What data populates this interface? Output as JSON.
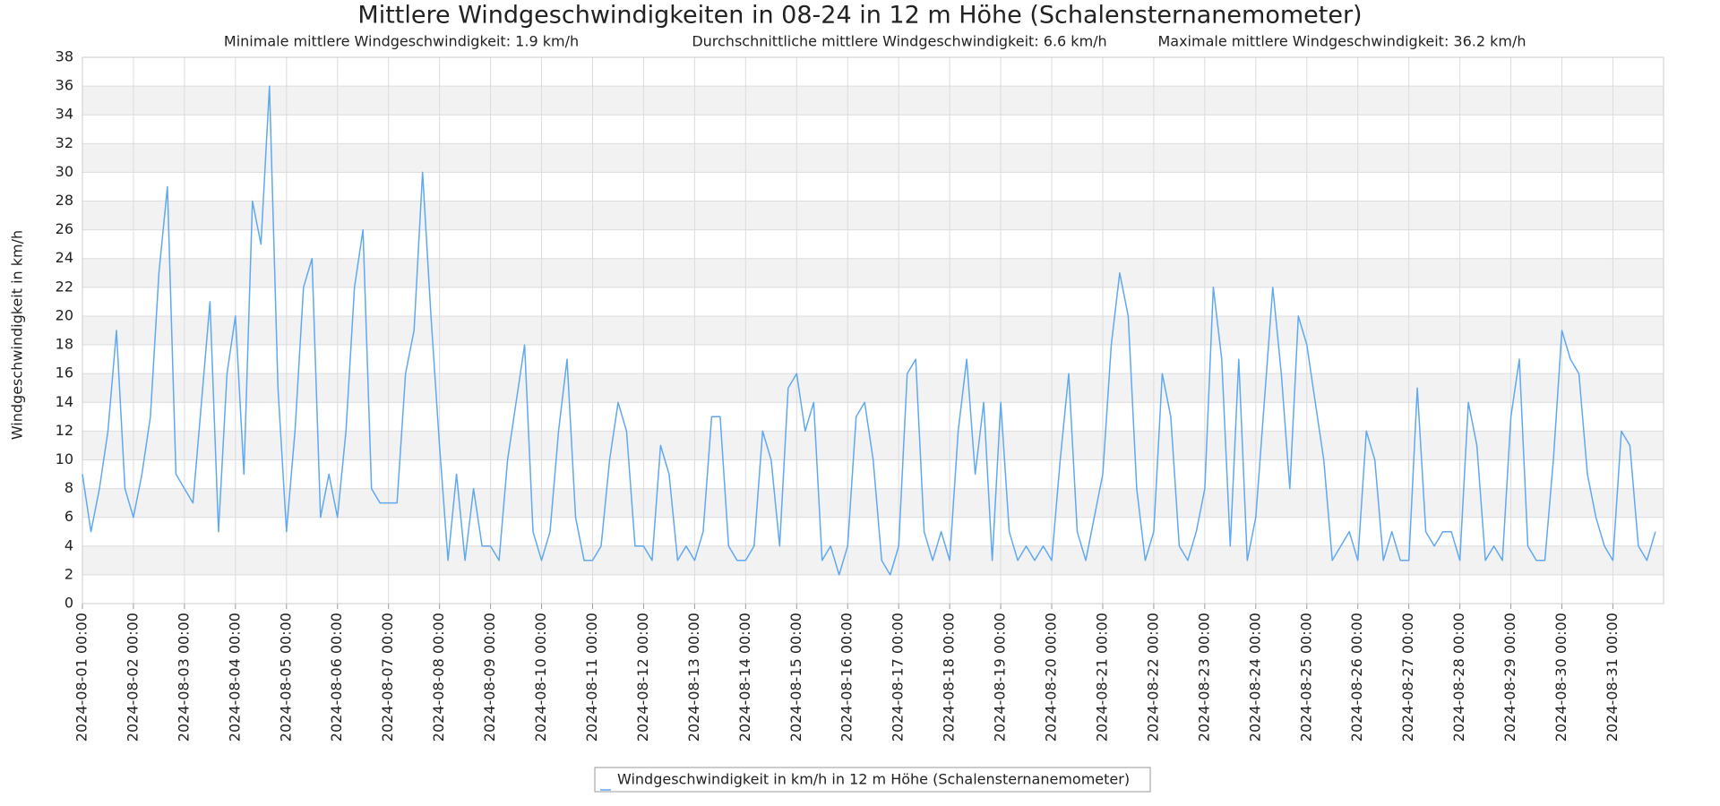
{
  "chart_data": {
    "type": "line",
    "title": "Mittlere Windgeschwindigkeiten in 08-24 in 12 m Höhe (Schalensternanemometer)",
    "subtitle": [
      "Minimale mittlere Windgeschwindigkeit: 1.9 km/h",
      "Durchschnittliche mittlere Windgeschwindigkeit: 6.6 km/h",
      "Maximale mittlere Windgeschwindigkeit: 36.2 km/h"
    ],
    "y_label": "Windgeschwindigkeit in km/h",
    "ylim": [
      0,
      38
    ],
    "yticks": [
      0,
      2,
      4,
      6,
      8,
      10,
      12,
      14,
      16,
      18,
      20,
      22,
      24,
      26,
      28,
      30,
      32,
      34,
      36,
      38
    ],
    "xlim": [
      "2024-08-01 00:00",
      "2024-08-31 23:50"
    ],
    "xticks": [
      "2024-08-01 00:00",
      "2024-08-02 00:00",
      "2024-08-03 00:00",
      "2024-08-04 00:00",
      "2024-08-05 00:00",
      "2024-08-06 00:00",
      "2024-08-07 00:00",
      "2024-08-08 00:00",
      "2024-08-09 00:00",
      "2024-08-10 00:00",
      "2024-08-11 00:00",
      "2024-08-12 00:00",
      "2024-08-13 00:00",
      "2024-08-14 00:00",
      "2024-08-15 00:00",
      "2024-08-16 00:00",
      "2024-08-17 00:00",
      "2024-08-18 00:00",
      "2024-08-19 00:00",
      "2024-08-20 00:00",
      "2024-08-21 00:00",
      "2024-08-22 00:00",
      "2024-08-23 00:00",
      "2024-08-24 00:00",
      "2024-08-25 00:00",
      "2024-08-26 00:00",
      "2024-08-27 00:00",
      "2024-08-28 00:00",
      "2024-08-29 00:00",
      "2024-08-30 00:00",
      "2024-08-31 00:00"
    ],
    "grid": true,
    "x": [
      "2024-08-01 00:00",
      "2024-08-01 04:00",
      "2024-08-01 08:00",
      "2024-08-01 12:00",
      "2024-08-01 16:00",
      "2024-08-01 20:00",
      "2024-08-02 00:00",
      "2024-08-02 04:00",
      "2024-08-02 08:00",
      "2024-08-02 12:00",
      "2024-08-02 16:00",
      "2024-08-02 20:00",
      "2024-08-03 00:00",
      "2024-08-03 04:00",
      "2024-08-03 08:00",
      "2024-08-03 12:00",
      "2024-08-03 16:00",
      "2024-08-03 20:00",
      "2024-08-04 00:00",
      "2024-08-04 04:00",
      "2024-08-04 08:00",
      "2024-08-04 12:00",
      "2024-08-04 16:00",
      "2024-08-04 20:00",
      "2024-08-05 00:00",
      "2024-08-05 04:00",
      "2024-08-05 08:00",
      "2024-08-05 12:00",
      "2024-08-05 16:00",
      "2024-08-05 20:00",
      "2024-08-06 00:00",
      "2024-08-06 04:00",
      "2024-08-06 08:00",
      "2024-08-06 12:00",
      "2024-08-06 16:00",
      "2024-08-06 20:00",
      "2024-08-07 00:00",
      "2024-08-07 04:00",
      "2024-08-07 08:00",
      "2024-08-07 12:00",
      "2024-08-07 16:00",
      "2024-08-07 20:00",
      "2024-08-08 00:00",
      "2024-08-08 04:00",
      "2024-08-08 08:00",
      "2024-08-08 12:00",
      "2024-08-08 16:00",
      "2024-08-08 20:00",
      "2024-08-09 00:00",
      "2024-08-09 04:00",
      "2024-08-09 08:00",
      "2024-08-09 12:00",
      "2024-08-09 16:00",
      "2024-08-09 20:00",
      "2024-08-10 00:00",
      "2024-08-10 04:00",
      "2024-08-10 08:00",
      "2024-08-10 12:00",
      "2024-08-10 16:00",
      "2024-08-10 20:00",
      "2024-08-11 00:00",
      "2024-08-11 04:00",
      "2024-08-11 08:00",
      "2024-08-11 12:00",
      "2024-08-11 16:00",
      "2024-08-11 20:00",
      "2024-08-12 00:00",
      "2024-08-12 04:00",
      "2024-08-12 08:00",
      "2024-08-12 12:00",
      "2024-08-12 16:00",
      "2024-08-12 20:00",
      "2024-08-13 00:00",
      "2024-08-13 04:00",
      "2024-08-13 08:00",
      "2024-08-13 12:00",
      "2024-08-13 16:00",
      "2024-08-13 20:00",
      "2024-08-14 00:00",
      "2024-08-14 04:00",
      "2024-08-14 08:00",
      "2024-08-14 12:00",
      "2024-08-14 16:00",
      "2024-08-14 20:00",
      "2024-08-15 00:00",
      "2024-08-15 04:00",
      "2024-08-15 08:00",
      "2024-08-15 12:00",
      "2024-08-15 16:00",
      "2024-08-15 20:00",
      "2024-08-16 00:00",
      "2024-08-16 04:00",
      "2024-08-16 08:00",
      "2024-08-16 12:00",
      "2024-08-16 16:00",
      "2024-08-16 20:00",
      "2024-08-17 00:00",
      "2024-08-17 04:00",
      "2024-08-17 08:00",
      "2024-08-17 12:00",
      "2024-08-17 16:00",
      "2024-08-17 20:00",
      "2024-08-18 00:00",
      "2024-08-18 04:00",
      "2024-08-18 08:00",
      "2024-08-18 12:00",
      "2024-08-18 16:00",
      "2024-08-18 20:00",
      "2024-08-19 00:00",
      "2024-08-19 04:00",
      "2024-08-19 08:00",
      "2024-08-19 12:00",
      "2024-08-19 16:00",
      "2024-08-19 20:00",
      "2024-08-20 00:00",
      "2024-08-20 04:00",
      "2024-08-20 08:00",
      "2024-08-20 12:00",
      "2024-08-20 16:00",
      "2024-08-20 20:00",
      "2024-08-21 00:00",
      "2024-08-21 04:00",
      "2024-08-21 08:00",
      "2024-08-21 12:00",
      "2024-08-21 16:00",
      "2024-08-21 20:00",
      "2024-08-22 00:00",
      "2024-08-22 04:00",
      "2024-08-22 08:00",
      "2024-08-22 12:00",
      "2024-08-22 16:00",
      "2024-08-22 20:00",
      "2024-08-23 00:00",
      "2024-08-23 04:00",
      "2024-08-23 08:00",
      "2024-08-23 12:00",
      "2024-08-23 16:00",
      "2024-08-23 20:00",
      "2024-08-24 00:00",
      "2024-08-24 04:00",
      "2024-08-24 08:00",
      "2024-08-24 12:00",
      "2024-08-24 16:00",
      "2024-08-24 20:00",
      "2024-08-25 00:00",
      "2024-08-25 04:00",
      "2024-08-25 08:00",
      "2024-08-25 12:00",
      "2024-08-25 16:00",
      "2024-08-25 20:00",
      "2024-08-26 00:00",
      "2024-08-26 04:00",
      "2024-08-26 08:00",
      "2024-08-26 12:00",
      "2024-08-26 16:00",
      "2024-08-26 20:00",
      "2024-08-27 00:00",
      "2024-08-27 04:00",
      "2024-08-27 08:00",
      "2024-08-27 12:00",
      "2024-08-27 16:00",
      "2024-08-27 20:00",
      "2024-08-28 00:00",
      "2024-08-28 04:00",
      "2024-08-28 08:00",
      "2024-08-28 12:00",
      "2024-08-28 16:00",
      "2024-08-28 20:00",
      "2024-08-29 00:00",
      "2024-08-29 04:00",
      "2024-08-29 08:00",
      "2024-08-29 12:00",
      "2024-08-29 16:00",
      "2024-08-29 20:00",
      "2024-08-30 00:00",
      "2024-08-30 04:00",
      "2024-08-30 08:00",
      "2024-08-30 12:00",
      "2024-08-30 16:00",
      "2024-08-30 20:00",
      "2024-08-31 00:00",
      "2024-08-31 04:00",
      "2024-08-31 08:00",
      "2024-08-31 12:00",
      "2024-08-31 16:00",
      "2024-08-31 20:00"
    ],
    "series": [
      {
        "name": "Windgeschwindigkeit in km/h in 12 m Höhe (Schalensternanemometer)",
        "color": "#60a8f0",
        "values": [
          9,
          5,
          8,
          12,
          19,
          8,
          6,
          9,
          13,
          23,
          29,
          9,
          8,
          7,
          14,
          21,
          5,
          16,
          20,
          9,
          28,
          25,
          36,
          15,
          5,
          12,
          22,
          24,
          6,
          9,
          6,
          12,
          22,
          26,
          8,
          7,
          7,
          7,
          16,
          19,
          30,
          20,
          11,
          3,
          9,
          3,
          8,
          4,
          4,
          3,
          10,
          14,
          18,
          5,
          3,
          5,
          12,
          17,
          6,
          3,
          3,
          4,
          10,
          14,
          12,
          4,
          4,
          3,
          11,
          9,
          3,
          4,
          3,
          5,
          13,
          13,
          4,
          3,
          3,
          4,
          12,
          10,
          4,
          15,
          16,
          12,
          14,
          3,
          4,
          2,
          4,
          13,
          14,
          10,
          3,
          2,
          4,
          16,
          17,
          5,
          3,
          5,
          3,
          12,
          17,
          9,
          14,
          3,
          14,
          5,
          3,
          4,
          3,
          4,
          3,
          10,
          16,
          5,
          3,
          6,
          9,
          18,
          23,
          20,
          8,
          3,
          5,
          16,
          13,
          4,
          3,
          5,
          8,
          22,
          17,
          4,
          17,
          3,
          6,
          14,
          22,
          16,
          8,
          20,
          18,
          14,
          10,
          3,
          4,
          5,
          3,
          12,
          10,
          3,
          5,
          3,
          3,
          15,
          5,
          4,
          5,
          5,
          3,
          14,
          11,
          3,
          4,
          3,
          13,
          17,
          4,
          3,
          3,
          10,
          19,
          17,
          16,
          9,
          6,
          4,
          3,
          12,
          11,
          4,
          3,
          5
        ]
      }
    ]
  }
}
